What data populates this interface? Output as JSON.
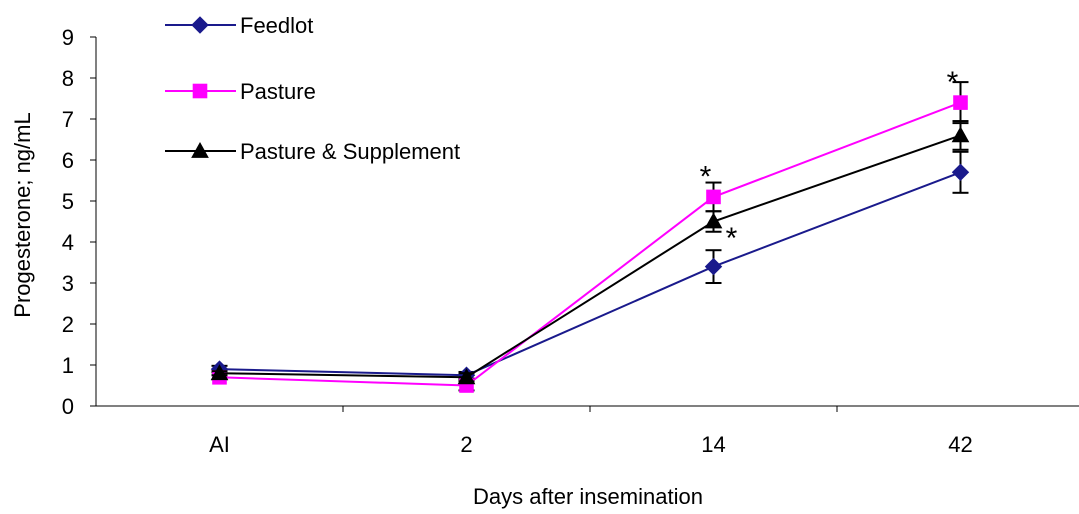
{
  "chart_data": {
    "type": "line",
    "title": "",
    "xlabel": "Days after insemination",
    "ylabel": "Progesterone; ng/mL",
    "categories": [
      "AI",
      "2",
      "14",
      "42"
    ],
    "ylim": [
      0,
      9
    ],
    "yticks": [
      0,
      1,
      2,
      3,
      4,
      5,
      6,
      7,
      8,
      9
    ],
    "grid": false,
    "legend_position": "top-left",
    "series": [
      {
        "name": "Feedlot",
        "color": "#1a1a8c",
        "marker": "diamond",
        "values": [
          0.9,
          0.75,
          3.4,
          5.7
        ],
        "errors": [
          0.08,
          0.08,
          0.4,
          0.5
        ]
      },
      {
        "name": "Pasture",
        "color": "#ff00ff",
        "marker": "square",
        "values": [
          0.7,
          0.5,
          5.1,
          7.4
        ],
        "errors": [
          0.05,
          0.12,
          0.35,
          0.5
        ]
      },
      {
        "name": "Pasture & Supplement",
        "color": "#000000",
        "marker": "triangle",
        "values": [
          0.8,
          0.7,
          4.5,
          6.6
        ],
        "errors": [
          0.05,
          0.1,
          0.25,
          0.35
        ]
      }
    ],
    "annotations": [
      {
        "text": "*",
        "category": "14",
        "y": 5.6
      },
      {
        "text": "*",
        "category": "14",
        "y": 4.1
      },
      {
        "text": "*",
        "category": "42",
        "y": 7.9
      }
    ]
  }
}
